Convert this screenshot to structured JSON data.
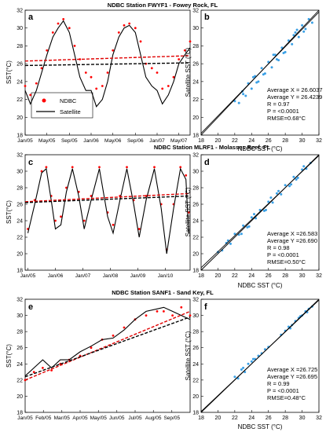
{
  "colors": {
    "ndbc": "#ff0000",
    "satellite": "#000000",
    "scatter": "#3aa0e6",
    "trend_ndbc": "#e00000",
    "trend_sat": "#000000"
  },
  "legend": {
    "ndbc": "NDBC",
    "satellite": "Satellite"
  },
  "chart_data": [
    {
      "type": "line",
      "panel": "a",
      "title": "NDBC Station FWYF1 - Fowey Rock, FL",
      "xlabel": "",
      "ylabel": "SST(°C)",
      "ylim": [
        18,
        32
      ],
      "yticks": [
        18,
        20,
        22,
        24,
        26,
        28,
        30,
        32
      ],
      "xlim": [
        2005.0,
        2007.5
      ],
      "xticks": [
        {
          "x": 2005.0,
          "label": "Jan/05"
        },
        {
          "x": 2005.33,
          "label": "May/05"
        },
        {
          "x": 2005.67,
          "label": "Sep/05"
        },
        {
          "x": 2006.0,
          "label": "Jan/06"
        },
        {
          "x": 2006.33,
          "label": "May/06"
        },
        {
          "x": 2006.67,
          "label": "Sep/06"
        },
        {
          "x": 2007.0,
          "label": "Jan/07"
        },
        {
          "x": 2007.33,
          "label": "May/07"
        }
      ],
      "series": [
        {
          "name": "NDBC",
          "style": "points",
          "x": [
            2005.0,
            2005.08,
            2005.17,
            2005.25,
            2005.33,
            2005.42,
            2005.5,
            2005.58,
            2005.67,
            2005.75,
            2005.83,
            2005.92,
            2006.0,
            2006.08,
            2006.17,
            2006.25,
            2006.33,
            2006.42,
            2006.5,
            2006.58,
            2006.67,
            2006.75,
            2006.83,
            2006.92,
            2007.0,
            2007.08,
            2007.17,
            2007.25,
            2007.33,
            2007.42,
            2007.5
          ],
          "y": [
            23.5,
            22.5,
            23.8,
            25.5,
            27.5,
            29.5,
            30.5,
            31.0,
            30.0,
            28.0,
            26.5,
            25.0,
            24.5,
            23.2,
            23.5,
            25.0,
            27.5,
            29.5,
            30.3,
            30.5,
            30.0,
            28.5,
            26.0,
            25.5,
            25.0,
            23.2,
            23.5,
            24.5,
            26.5,
            27.5,
            28.5
          ]
        },
        {
          "name": "Satellite",
          "style": "line",
          "x": [
            2005.0,
            2005.08,
            2005.17,
            2005.25,
            2005.33,
            2005.42,
            2005.5,
            2005.58,
            2005.67,
            2005.75,
            2005.83,
            2005.92,
            2006.0,
            2006.08,
            2006.17,
            2006.25,
            2006.33,
            2006.42,
            2006.5,
            2006.58,
            2006.67,
            2006.75,
            2006.83,
            2006.92,
            2007.0,
            2007.08,
            2007.17,
            2007.25,
            2007.33,
            2007.42,
            2007.5
          ],
          "y": [
            23.0,
            21.5,
            23.0,
            25.0,
            27.0,
            29.0,
            30.0,
            30.8,
            29.5,
            27.0,
            24.5,
            23.0,
            23.0,
            21.2,
            22.0,
            24.0,
            27.0,
            29.0,
            30.0,
            30.3,
            29.5,
            27.0,
            24.5,
            23.5,
            23.0,
            21.5,
            22.5,
            24.0,
            26.0,
            27.0,
            27.8
          ]
        }
      ],
      "trends": [
        {
          "name": "NDBC",
          "x": [
            2005.0,
            2007.5
          ],
          "y": [
            26.3,
            26.9
          ]
        },
        {
          "name": "Satellite",
          "x": [
            2005.0,
            2007.5
          ],
          "y": [
            25.8,
            26.1
          ]
        }
      ]
    },
    {
      "type": "scatter",
      "panel": "b",
      "xlabel": "NDBC SST (°C)",
      "ylabel": "Satellite SST (°C)",
      "xlim": [
        18,
        32
      ],
      "ylim": [
        18,
        32
      ],
      "xticks": [
        18,
        20,
        22,
        24,
        26,
        28,
        30,
        32
      ],
      "yticks": [
        18,
        20,
        22,
        24,
        26,
        28,
        30,
        32
      ],
      "stats": [
        "Average X = 26.6037",
        "Average Y = 26.4239",
        "R = 0.97",
        "P = <0.0001",
        "RMSE=0.68°C"
      ],
      "x": [
        22.0,
        22.5,
        22.9,
        23.3,
        23.6,
        24.0,
        24.4,
        24.8,
        25.2,
        25.6,
        26.0,
        26.4,
        26.8,
        27.2,
        27.6,
        28.0,
        28.4,
        28.8,
        29.2,
        29.6,
        30.0,
        30.4,
        30.8,
        31.2,
        23.0,
        24.2,
        25.4,
        26.6,
        27.8,
        29.0,
        30.2,
        24.6,
        27.0,
        29.4
      ],
      "y": [
        21.8,
        21.6,
        22.9,
        22.4,
        23.8,
        23.2,
        24.6,
        24.0,
        25.5,
        24.9,
        26.2,
        25.6,
        27.0,
        26.4,
        27.8,
        27.3,
        28.6,
        28.2,
        29.5,
        29.0,
        30.3,
        29.9,
        31.0,
        30.6,
        22.6,
        24.5,
        24.8,
        27.0,
        27.2,
        29.2,
        29.6,
        23.9,
        26.5,
        29.8
      ],
      "fit": {
        "x": [
          18,
          32
        ],
        "y": [
          18.2,
          31.8
        ]
      }
    },
    {
      "type": "line",
      "panel": "c",
      "title": "NDBC Station MLRF1 - Molasses Reef, FL",
      "xlabel": "",
      "ylabel": "SST(°C)",
      "ylim": [
        18,
        32
      ],
      "yticks": [
        18,
        20,
        22,
        24,
        26,
        28,
        30,
        32
      ],
      "xlim": [
        2004.9,
        2010.9
      ],
      "xticks": [
        {
          "x": 2005.0,
          "label": "Jan/05"
        },
        {
          "x": 2006.0,
          "label": "Jan/06"
        },
        {
          "x": 2007.0,
          "label": "Jan/07"
        },
        {
          "x": 2008.0,
          "label": "Jan/08"
        },
        {
          "x": 2009.0,
          "label": "Jan/09"
        },
        {
          "x": 2010.0,
          "label": "Jan/10"
        }
      ],
      "series": [
        {
          "name": "NDBC",
          "style": "points",
          "x": [
            2005.0,
            2005.25,
            2005.5,
            2005.67,
            2005.85,
            2006.0,
            2006.2,
            2006.4,
            2006.62,
            2006.85,
            2007.05,
            2007.3,
            2007.6,
            2007.9,
            2008.1,
            2008.35,
            2008.6,
            2008.85,
            2009.05,
            2009.3,
            2009.6,
            2009.85,
            2010.05,
            2010.3,
            2010.55,
            2010.75,
            2010.85
          ],
          "y": [
            23.0,
            26.5,
            30.0,
            30.5,
            27.0,
            24.0,
            24.5,
            28.0,
            30.5,
            27.5,
            24.0,
            27.0,
            30.5,
            25.0,
            23.5,
            27.0,
            30.5,
            26.5,
            23.0,
            27.0,
            30.5,
            26.0,
            20.5,
            26.0,
            30.5,
            29.5,
            25.0
          ]
        },
        {
          "name": "Satellite",
          "style": "line",
          "x": [
            2005.0,
            2005.25,
            2005.5,
            2005.67,
            2005.85,
            2006.0,
            2006.2,
            2006.4,
            2006.62,
            2006.85,
            2007.05,
            2007.3,
            2007.6,
            2007.9,
            2008.1,
            2008.35,
            2008.6,
            2008.85,
            2009.05,
            2009.3,
            2009.6,
            2009.85,
            2010.05,
            2010.3,
            2010.55,
            2010.75,
            2010.85
          ],
          "y": [
            22.5,
            26.0,
            29.8,
            30.3,
            26.5,
            23.0,
            23.5,
            27.5,
            30.3,
            27.0,
            23.0,
            26.5,
            30.3,
            24.5,
            22.5,
            26.5,
            30.3,
            26.0,
            22.0,
            26.5,
            30.3,
            25.5,
            20.0,
            25.5,
            30.3,
            29.0,
            22.5
          ]
        }
      ],
      "trends": [
        {
          "name": "NDBC",
          "x": [
            2004.9,
            2010.9
          ],
          "y": [
            26.3,
            27.3
          ]
        },
        {
          "name": "Satellite",
          "x": [
            2004.9,
            2010.9
          ],
          "y": [
            26.2,
            27.0
          ]
        }
      ]
    },
    {
      "type": "scatter",
      "panel": "d",
      "xlabel": "NDBC SST (°C)",
      "ylabel": "Satellite SST (°C)",
      "xlim": [
        18,
        32
      ],
      "ylim": [
        18,
        32
      ],
      "xticks": [
        18,
        20,
        22,
        24,
        26,
        28,
        30,
        32
      ],
      "yticks": [
        18,
        20,
        22,
        24,
        26,
        28,
        30,
        32
      ],
      "stats": [
        "Average X =26.583",
        "Average Y =26.690",
        "R = 0.98",
        "P = <0.0001",
        "RMSE=0.50°C"
      ],
      "x": [
        20.0,
        20.5,
        21.0,
        21.5,
        22.0,
        22.5,
        23.0,
        23.5,
        24.0,
        24.5,
        25.0,
        25.5,
        26.0,
        26.5,
        27.0,
        27.5,
        28.0,
        28.5,
        29.0,
        29.5,
        30.0,
        30.5,
        31.0,
        21.2,
        22.8,
        24.3,
        25.7,
        27.2,
        28.7,
        30.2,
        23.7,
        26.3,
        29.3
      ],
      "y": [
        20.2,
        20.4,
        21.3,
        21.2,
        22.4,
        22.3,
        23.4,
        23.2,
        24.4,
        24.3,
        25.3,
        25.2,
        26.3,
        26.2,
        27.3,
        27.2,
        28.3,
        28.2,
        29.3,
        29.2,
        30.2,
        30.3,
        31.0,
        21.6,
        22.4,
        24.8,
        25.3,
        27.6,
        28.4,
        30.6,
        23.3,
        26.8,
        29.0
      ],
      "fit": {
        "x": [
          18,
          32
        ],
        "y": [
          18.3,
          31.9
        ]
      }
    },
    {
      "type": "line",
      "panel": "e",
      "title": "NDBC Station SANF1 - Sand Key, FL",
      "xlabel": "",
      "ylabel": "SST(°C)",
      "ylim": [
        18,
        32
      ],
      "yticks": [
        18,
        20,
        22,
        24,
        26,
        28,
        30,
        32
      ],
      "xlim": [
        2005.0,
        2005.75
      ],
      "xticks": [
        {
          "x": 2005.0,
          "label": "Jan/05"
        },
        {
          "x": 2005.083,
          "label": "Feb/05"
        },
        {
          "x": 2005.167,
          "label": "Mar/05"
        },
        {
          "x": 2005.25,
          "label": "Apr/05"
        },
        {
          "x": 2005.333,
          "label": "May/05"
        },
        {
          "x": 2005.417,
          "label": "Jun/05"
        },
        {
          "x": 2005.5,
          "label": "Jul/05"
        },
        {
          "x": 2005.583,
          "label": "Aug/05"
        },
        {
          "x": 2005.667,
          "label": "Sep/05"
        }
      ],
      "series": [
        {
          "name": "NDBC",
          "style": "points",
          "x": [
            2005.0,
            2005.04,
            2005.08,
            2005.12,
            2005.16,
            2005.2,
            2005.25,
            2005.3,
            2005.35,
            2005.4,
            2005.45,
            2005.5,
            2005.55,
            2005.6,
            2005.63,
            2005.67,
            2005.71,
            2005.75
          ],
          "y": [
            22.0,
            23.0,
            23.5,
            23.2,
            24.0,
            24.5,
            25.0,
            26.0,
            27.0,
            27.5,
            28.5,
            29.5,
            30.0,
            30.5,
            30.5,
            30.0,
            31.0,
            30.0
          ]
        },
        {
          "name": "Satellite",
          "style": "line",
          "x": [
            2005.0,
            2005.04,
            2005.08,
            2005.12,
            2005.16,
            2005.2,
            2005.25,
            2005.3,
            2005.35,
            2005.4,
            2005.45,
            2005.5,
            2005.55,
            2005.6,
            2005.63,
            2005.67,
            2005.71,
            2005.75
          ],
          "y": [
            22.5,
            23.5,
            24.5,
            23.5,
            24.5,
            24.5,
            25.5,
            26.2,
            27.0,
            27.2,
            28.2,
            29.5,
            30.5,
            30.8,
            31.0,
            30.5,
            30.0,
            29.5
          ]
        }
      ],
      "trends": [
        {
          "name": "NDBC",
          "x": [
            2005.0,
            2005.75
          ],
          "y": [
            22.0,
            30.5
          ]
        },
        {
          "name": "Satellite",
          "x": [
            2005.0,
            2005.75
          ],
          "y": [
            22.4,
            29.8
          ]
        }
      ]
    },
    {
      "type": "scatter",
      "panel": "f",
      "xlabel": "NDBC SST (°C)",
      "ylabel": "Satellite SST (°C)",
      "xlim": [
        18,
        32
      ],
      "ylim": [
        18,
        32
      ],
      "xticks": [
        18,
        20,
        22,
        24,
        26,
        28,
        30,
        32
      ],
      "yticks": [
        18,
        20,
        22,
        24,
        26,
        28,
        30,
        32
      ],
      "stats": [
        "Average X =26.725",
        "Average Y =26.695",
        "R = 0.99",
        "P = <0.0001",
        "RMSE=0.48°C"
      ],
      "x": [
        22.0,
        22.4,
        22.8,
        23.2,
        23.6,
        24.0,
        24.4,
        24.8,
        25.2,
        25.6,
        26.0,
        27.5,
        28.0,
        28.4,
        28.8,
        29.2,
        29.6,
        30.0,
        30.4,
        30.8,
        31.2,
        23.0,
        24.2,
        28.6,
        29.8,
        30.6
      ],
      "y": [
        22.4,
        22.2,
        23.3,
        23.0,
        24.0,
        24.3,
        24.6,
        25.0,
        25.3,
        25.8,
        26.1,
        27.6,
        28.1,
        28.6,
        28.8,
        29.3,
        29.7,
        30.0,
        30.5,
        30.8,
        31.1,
        23.5,
        24.6,
        28.4,
        29.9,
        30.4
      ],
      "fit": {
        "x": [
          18,
          32
        ],
        "y": [
          18.1,
          31.9
        ]
      }
    }
  ]
}
